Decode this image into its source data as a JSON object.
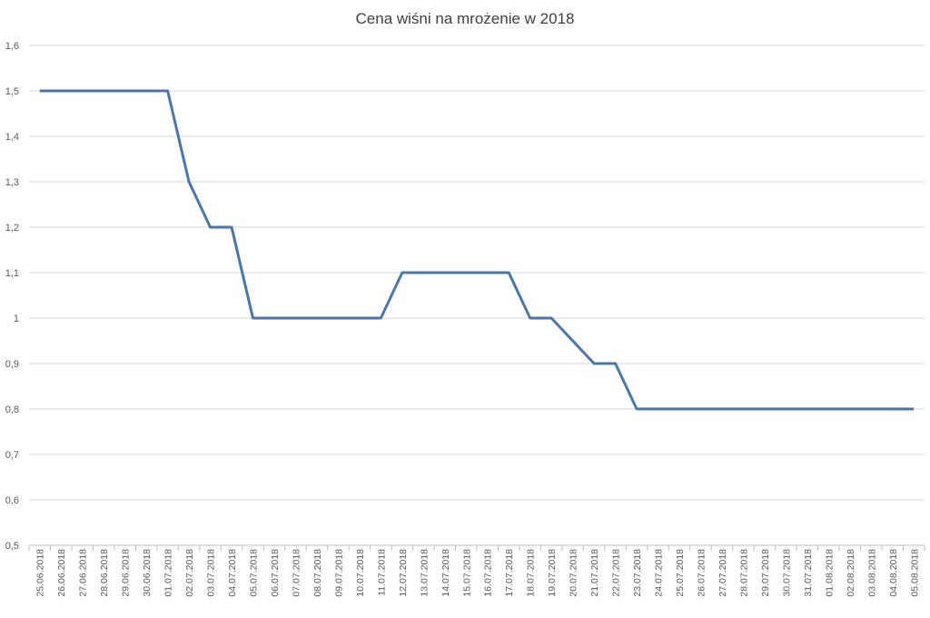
{
  "chart_data": {
    "type": "line",
    "title": "Cena wiśni na mrożenie w 2018",
    "xlabel": "",
    "ylabel": "",
    "ylim": [
      0.5,
      1.6
    ],
    "yticks": [
      "0,5",
      "0,6",
      "0,7",
      "0,8",
      "0,9",
      "1",
      "1,1",
      "1,2",
      "1,3",
      "1,4",
      "1,5",
      "1,6"
    ],
    "categories": [
      "25.06.2018",
      "26.06.2018",
      "27.06.2018",
      "28.06.2018",
      "29.06.2018",
      "30.06.2018",
      "01.07.2018",
      "02.07.2018",
      "03.07.2018",
      "04.07.2018",
      "05.07.2018",
      "06.07.2018",
      "07.07.2018",
      "08.07.2018",
      "09.07.2018",
      "10.07.2018",
      "11.07.2018",
      "12.07.2018",
      "13.07.2018",
      "14.07.2018",
      "15.07.2018",
      "16.07.2018",
      "17.07.2018",
      "18.07.2018",
      "19.07.2018",
      "20.07.2018",
      "21.07.2018",
      "22.07.2018",
      "23.07.2018",
      "24.07.2018",
      "25.07.2018",
      "26.07.2018",
      "27.07.2018",
      "28.07.2018",
      "29.07.2018",
      "30.07.2018",
      "31.07.2018",
      "01.08.2018",
      "02.08.2018",
      "03.08.2018",
      "04.08.2018",
      "05.08.2018"
    ],
    "series": [
      {
        "color": "#4a76a8",
        "values": [
          1.5,
          1.5,
          1.5,
          1.5,
          1.5,
          1.5,
          1.5,
          1.3,
          1.2,
          1.2,
          1.0,
          1.0,
          1.0,
          1.0,
          1.0,
          1.0,
          1.0,
          1.1,
          1.1,
          1.1,
          1.1,
          1.1,
          1.1,
          1.0,
          1.0,
          0.95,
          0.9,
          0.9,
          0.8,
          0.8,
          0.8,
          0.8,
          0.8,
          0.8,
          0.8,
          0.8,
          0.8,
          0.8,
          0.8,
          0.8,
          0.8,
          0.8
        ]
      }
    ],
    "grid": true,
    "legend": "none"
  }
}
